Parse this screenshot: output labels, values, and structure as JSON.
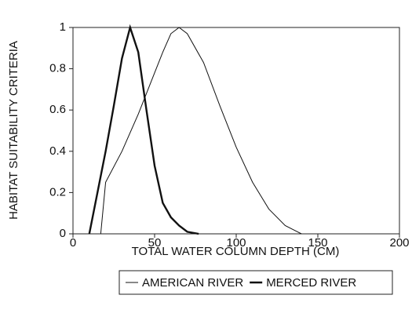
{
  "chart_data": {
    "type": "line",
    "xlabel": "TOTAL WATER COLUMN DEPTH (CM)",
    "ylabel": "HABITAT SUITABILITY CRITERIA",
    "xlim": [
      0,
      200
    ],
    "xticks": [
      0,
      50,
      100,
      150,
      200
    ],
    "ylim": [
      0,
      1
    ],
    "yticks": [
      0,
      0.2,
      0.4,
      0.6,
      0.8,
      1
    ],
    "legend": "bottom",
    "series": [
      {
        "name": "AMERICAN RIVER",
        "color": "#111111",
        "width": 1,
        "x": [
          17,
          20,
          30,
          40,
          50,
          55,
          60,
          65,
          70,
          80,
          90,
          100,
          110,
          120,
          130,
          140
        ],
        "values": [
          0,
          0.25,
          0.4,
          0.58,
          0.78,
          0.88,
          0.97,
          1,
          0.97,
          0.83,
          0.62,
          0.42,
          0.25,
          0.12,
          0.04,
          0
        ]
      },
      {
        "name": "MERCED RIVER",
        "color": "#111111",
        "width": 2.4,
        "x": [
          10,
          20,
          25,
          30,
          35,
          40,
          45,
          50,
          55,
          60,
          65,
          70,
          77
        ],
        "values": [
          0,
          0.4,
          0.62,
          0.85,
          1,
          0.88,
          0.6,
          0.33,
          0.15,
          0.08,
          0.04,
          0.01,
          0
        ]
      }
    ]
  }
}
